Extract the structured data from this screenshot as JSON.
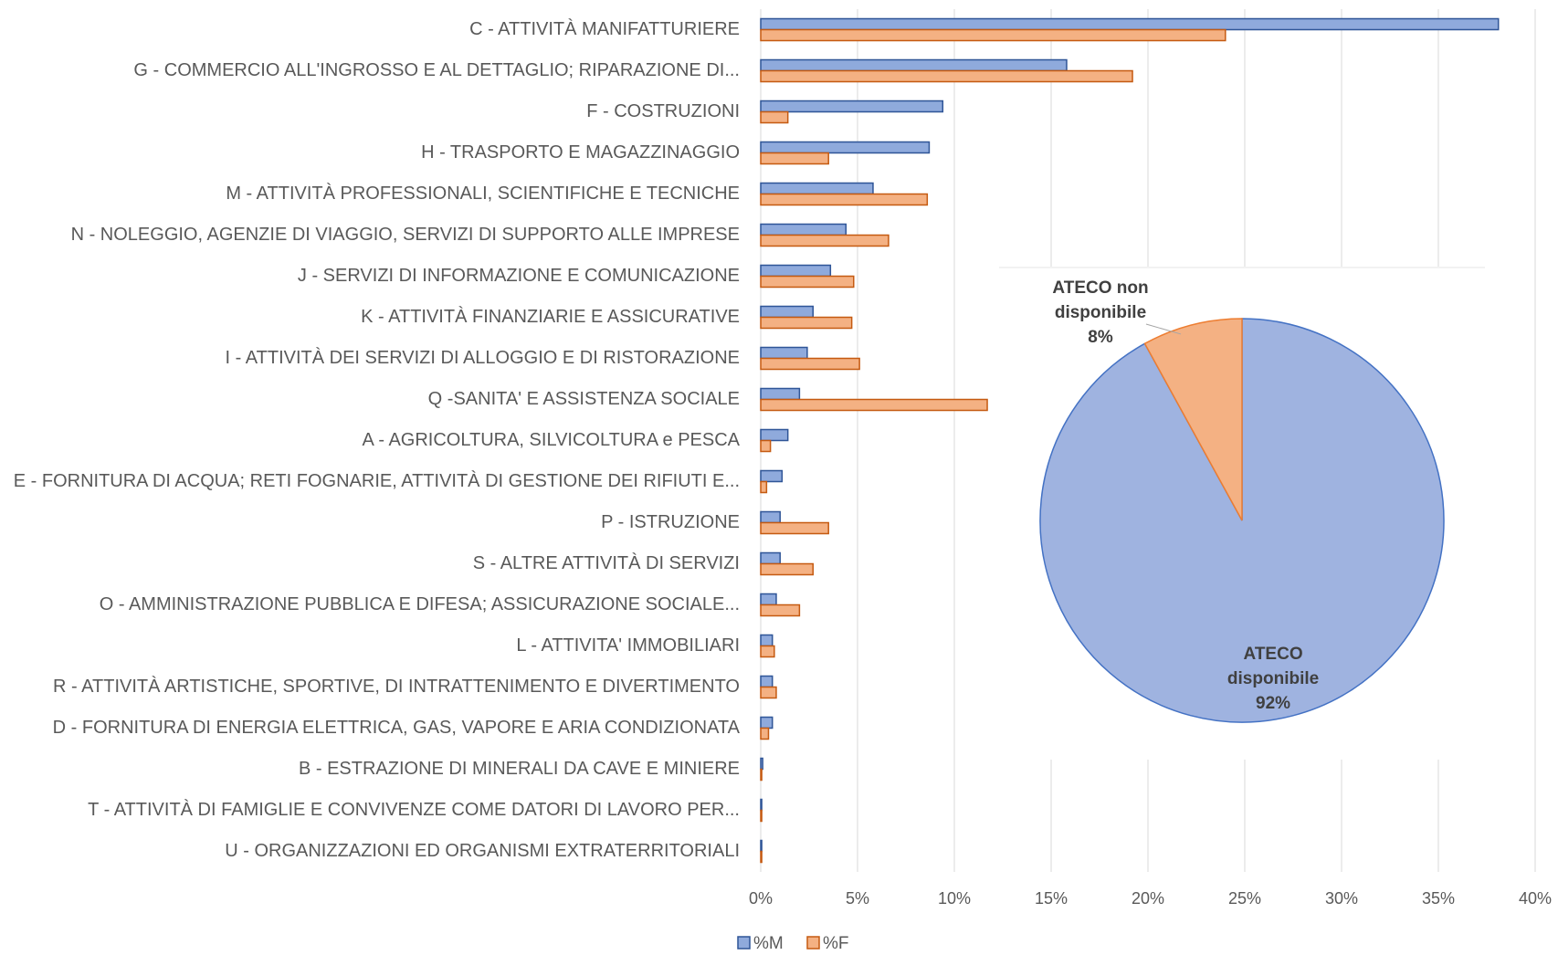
{
  "chart_data": [
    {
      "type": "bar",
      "orientation": "horizontal",
      "categories": [
        "C - ATTIVITÀ MANIFATTURIERE",
        "G - COMMERCIO ALL'INGROSSO E AL DETTAGLIO; RIPARAZIONE DI...",
        "F - COSTRUZIONI",
        "H - TRASPORTO E MAGAZZINAGGIO",
        "M - ATTIVITÀ PROFESSIONALI, SCIENTIFICHE E TECNICHE",
        "N -    NOLEGGIO, AGENZIE DI VIAGGIO, SERVIZI DI SUPPORTO ALLE IMPRESE",
        "J - SERVIZI DI INFORMAZIONE E COMUNICAZIONE",
        "K - ATTIVITÀ FINANZIARIE E ASSICURATIVE",
        "I - ATTIVITÀ DEI SERVIZI DI ALLOGGIO E DI RISTORAZIONE",
        "Q -SANITA' E ASSISTENZA SOCIALE",
        "A - AGRICOLTURA, SILVICOLTURA e PESCA",
        "E - FORNITURA DI ACQUA; RETI FOGNARIE, ATTIVITÀ DI GESTIONE DEI RIFIUTI E...",
        "P - ISTRUZIONE",
        "S - ALTRE ATTIVITÀ DI SERVIZI",
        "O - AMMINISTRAZIONE PUBBLICA E DIFESA; ASSICURAZIONE SOCIALE...",
        "L - ATTIVITA' IMMOBILIARI",
        "R - ATTIVITÀ ARTISTICHE, SPORTIVE, DI INTRATTENIMENTO E DIVERTIMENTO",
        "D - FORNITURA DI ENERGIA ELETTRICA, GAS, VAPORE E ARIA CONDIZIONATA",
        "B - ESTRAZIONE DI MINERALI DA CAVE E MINIERE",
        "T - ATTIVITÀ DI FAMIGLIE E CONVIVENZE COME DATORI DI LAVORO PER...",
        "U - ORGANIZZAZIONI ED ORGANISMI EXTRATERRITORIALI"
      ],
      "series": [
        {
          "name": "%M",
          "color": "#8faadc",
          "edge": "#2f5597",
          "values": [
            38.1,
            15.8,
            9.4,
            8.7,
            5.8,
            4.4,
            3.6,
            2.7,
            2.4,
            2.0,
            1.4,
            1.1,
            1.0,
            1.0,
            0.8,
            0.6,
            0.6,
            0.6,
            0.1,
            0.05,
            0.05
          ]
        },
        {
          "name": "%F",
          "color": "#f4b183",
          "edge": "#c55a11",
          "values": [
            24.0,
            19.2,
            1.4,
            3.5,
            8.6,
            6.6,
            4.8,
            4.7,
            5.1,
            11.7,
            0.5,
            0.3,
            3.5,
            2.7,
            2.0,
            0.7,
            0.8,
            0.4,
            0.05,
            0.05,
            0.05
          ]
        }
      ],
      "xlim": [
        0,
        40
      ],
      "xticks": [
        {
          "value": 0,
          "label": "0%"
        },
        {
          "value": 5,
          "label": "5%"
        },
        {
          "value": 10,
          "label": "10%"
        },
        {
          "value": 15,
          "label": "15%"
        },
        {
          "value": 20,
          "label": "20%"
        },
        {
          "value": 25,
          "label": "25%"
        },
        {
          "value": 30,
          "label": "30%"
        },
        {
          "value": 35,
          "label": "35%"
        },
        {
          "value": 40,
          "label": "40%"
        }
      ],
      "grid": true,
      "legend": "bottom"
    },
    {
      "type": "pie",
      "categories": [
        "ATECO disponibile",
        "ATECO non disponibile"
      ],
      "values": [
        92,
        8
      ],
      "value_labels": [
        "92%",
        "8%"
      ],
      "colors": [
        "#9fb3e0",
        "#f4b183"
      ],
      "edges": [
        "#4472c4",
        "#ed7d31"
      ]
    }
  ]
}
